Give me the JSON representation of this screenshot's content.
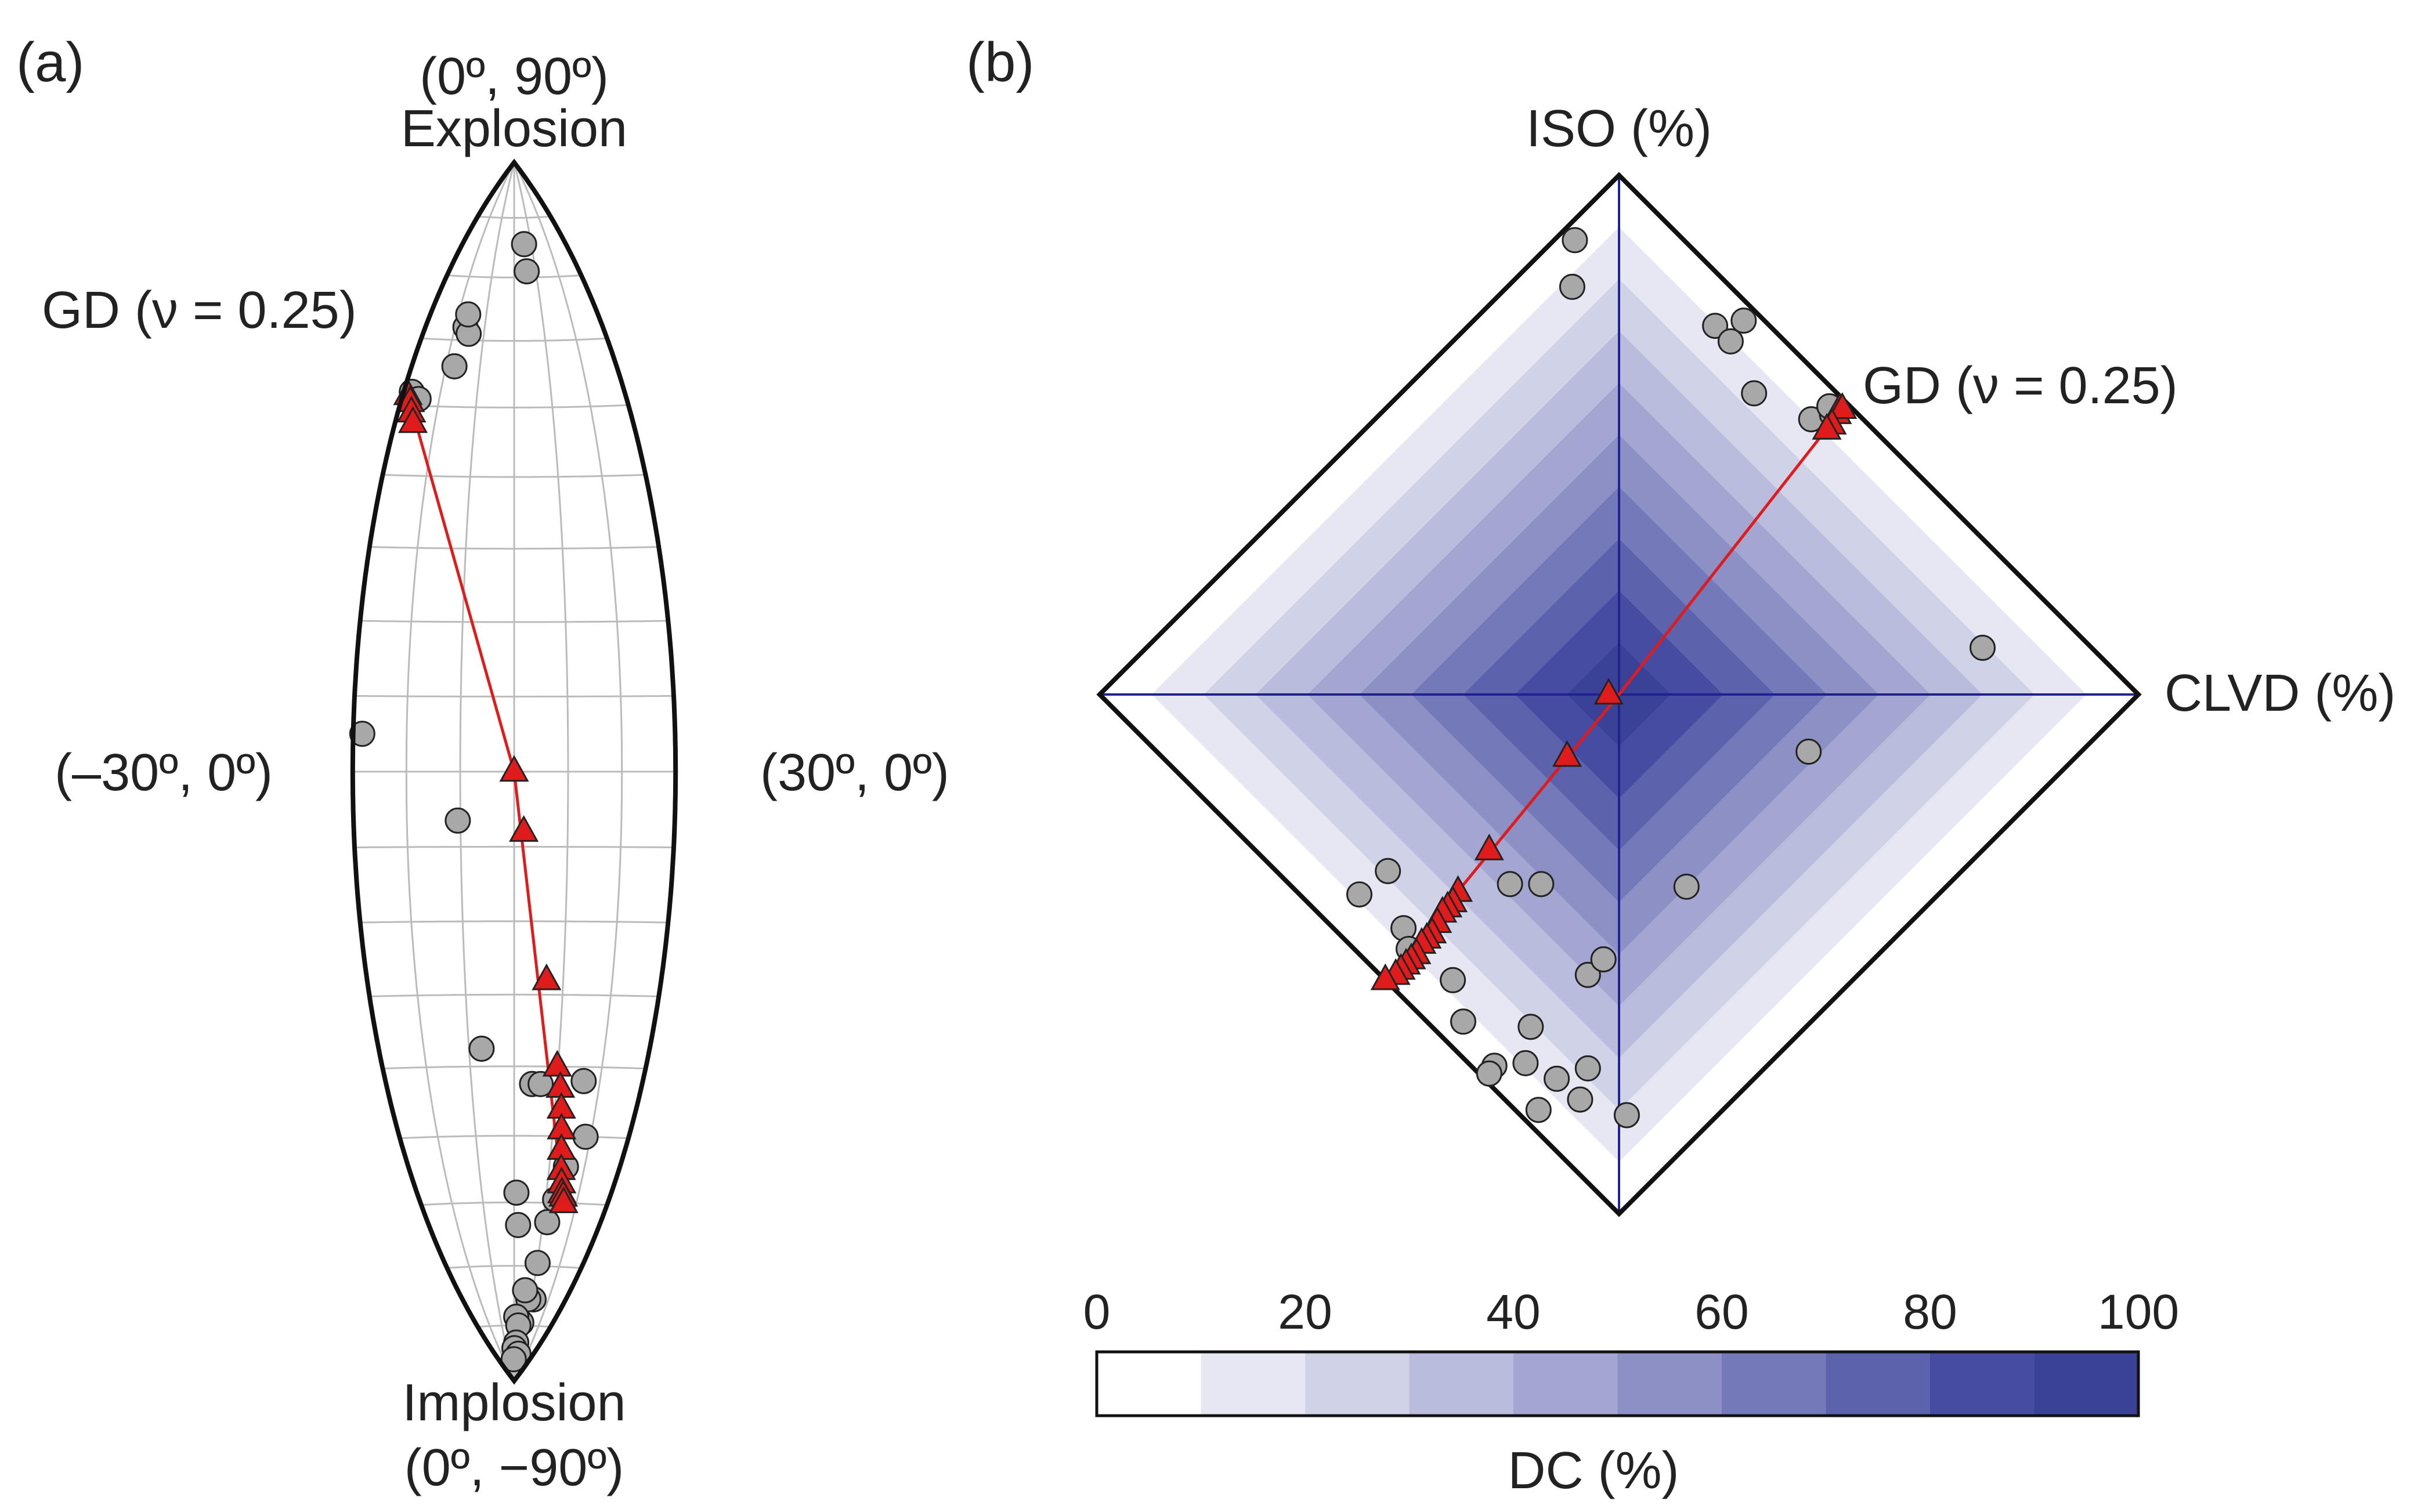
{
  "colors": {
    "background": "#ffffff",
    "outline": "#111111",
    "grid": "#bbbbbb",
    "axis_line": "#22228f",
    "trend_line": "#e01b1b",
    "triangle_fill": "#e01b1b",
    "circle_fill": "#a8a8a8",
    "colorbar": [
      "#ffffff",
      "#e6e7f3",
      "#d0d2e8",
      "#babcdd",
      "#a3a6d1",
      "#8c90c5",
      "#7479b9",
      "#5d62ad",
      "#464ca1",
      "#3a4298"
    ]
  },
  "chart_data": [
    {
      "type": "scatter",
      "projection": "Hudson lune (equal-area)",
      "panel_label": "(a)",
      "labels": {
        "top_coord": "(0º, 90º)",
        "top": "Explosion",
        "bottom": "Implosion",
        "bottom_coord": "(0º, −90º)",
        "left": "(–30º, 0º)",
        "right": "(30º, 0º)",
        "gd": "GD (ν = 0.25)"
      },
      "lon_range_deg": [
        -30,
        30
      ],
      "lat_range_deg": [
        -90,
        90
      ],
      "grid_lon_step_deg": 10,
      "grid_lat_step_deg": 10,
      "grid": true,
      "trend_line": [
        [
          -28.6,
          51.5
        ],
        [
          0,
          0
        ],
        [
          15.9,
          -60
        ]
      ],
      "triangles": [
        [
          -28.6,
          51.5
        ],
        [
          -27.5,
          50.5
        ],
        [
          -26.5,
          49
        ],
        [
          -25.5,
          47.5
        ],
        [
          0,
          0
        ],
        [
          1.8,
          -8
        ],
        [
          6.6,
          -28
        ],
        [
          9.8,
          -40
        ],
        [
          10.9,
          -43
        ],
        [
          11.6,
          -46
        ],
        [
          12.2,
          -49
        ],
        [
          12.8,
          -52
        ],
        [
          13.5,
          -55
        ],
        [
          14.2,
          -57
        ],
        [
          14.8,
          -58.5
        ],
        [
          15.4,
          -59
        ],
        [
          15.9,
          -60
        ]
      ],
      "circles": [
        [
          -27.8,
          52
        ],
        [
          -25.5,
          51
        ],
        [
          -17.5,
          56
        ],
        [
          -16.5,
          62
        ],
        [
          -15,
          61
        ],
        [
          -16.5,
          64
        ],
        [
          5.8,
          71
        ],
        [
          5.8,
          75.5
        ],
        [
          -28.3,
          5
        ],
        [
          -10.5,
          -6.5
        ],
        [
          -7.2,
          -37.5
        ],
        [
          4.2,
          -42.5
        ],
        [
          6.2,
          -42.5
        ],
        [
          16.2,
          -42
        ],
        [
          18.7,
          -50
        ],
        [
          14.7,
          -54.5
        ],
        [
          13,
          -59.5
        ],
        [
          11.5,
          -63
        ],
        [
          0.7,
          -58.5
        ],
        [
          1.4,
          -63.5
        ],
        [
          10.2,
          -69.5
        ],
        [
          11.4,
          -75.5
        ],
        [
          8.3,
          -75.5
        ],
        [
          5.6,
          -79.5
        ],
        [
          5.9,
          -74
        ],
        [
          1.5,
          -78.5
        ],
        [
          3.4,
          -80
        ],
        [
          2.4,
          -83
        ],
        [
          0.4,
          -84
        ],
        [
          6.6,
          -85
        ],
        [
          -0.9,
          -86
        ]
      ]
    },
    {
      "type": "scatter",
      "projection": "diamond source-type plot",
      "panel_label": "(b)",
      "labels": {
        "y_axis": "ISO (%)",
        "x_axis": "CLVD (%)",
        "gd": "GD (ν = 0.25)"
      },
      "x_range": [
        -100,
        100
      ],
      "y_range": [
        -100,
        100
      ],
      "trend_line": [
        [
          43,
          55
        ],
        [
          0,
          0
        ],
        [
          -45,
          -55
        ]
      ],
      "triangles": [
        [
          42,
          54
        ],
        [
          42.5,
          55
        ],
        [
          43,
          55
        ],
        [
          41,
          52
        ],
        [
          40,
          51
        ],
        [
          -2,
          0
        ],
        [
          -10,
          -12
        ],
        [
          -25,
          -30
        ],
        [
          -31,
          -38
        ],
        [
          -32,
          -40
        ],
        [
          -33,
          -41
        ],
        [
          -34,
          -42
        ],
        [
          -35,
          -44
        ],
        [
          -36,
          -46
        ],
        [
          -37,
          -47
        ],
        [
          -38,
          -48
        ],
        [
          -39,
          -50
        ],
        [
          -40,
          -51
        ],
        [
          -41,
          -52
        ],
        [
          -42,
          -53
        ],
        [
          -43,
          -54
        ],
        [
          -45,
          -55
        ]
      ],
      "circles": [
        [
          -8.5,
          87.5
        ],
        [
          -9,
          78.5
        ],
        [
          18.5,
          71
        ],
        [
          21.5,
          68
        ],
        [
          24,
          72
        ],
        [
          26,
          58
        ],
        [
          37,
          53
        ],
        [
          41,
          54
        ],
        [
          40.5,
          55.5
        ],
        [
          70,
          9
        ],
        [
          36.5,
          -11
        ],
        [
          13,
          -37
        ],
        [
          -21,
          -36.5
        ],
        [
          -15,
          -36.5
        ],
        [
          -50,
          -38.5
        ],
        [
          -44.5,
          -34
        ],
        [
          -41.5,
          -45
        ],
        [
          -40.5,
          -49
        ],
        [
          -32,
          -55
        ],
        [
          -6,
          -54
        ],
        [
          -3,
          -51
        ],
        [
          -30,
          -63
        ],
        [
          -17,
          -64
        ],
        [
          -24,
          -71.5
        ],
        [
          -25,
          -73
        ],
        [
          -18,
          -71
        ],
        [
          -6,
          -72
        ],
        [
          -12,
          -74
        ],
        [
          -7.5,
          -78
        ],
        [
          -15.5,
          -80
        ],
        [
          1.5,
          -81
        ]
      ],
      "colorbar": {
        "label": "DC (%)",
        "ticks": [
          "0",
          "20",
          "40",
          "60",
          "80",
          "100"
        ],
        "range": [
          0,
          100
        ],
        "step": 10
      }
    }
  ]
}
